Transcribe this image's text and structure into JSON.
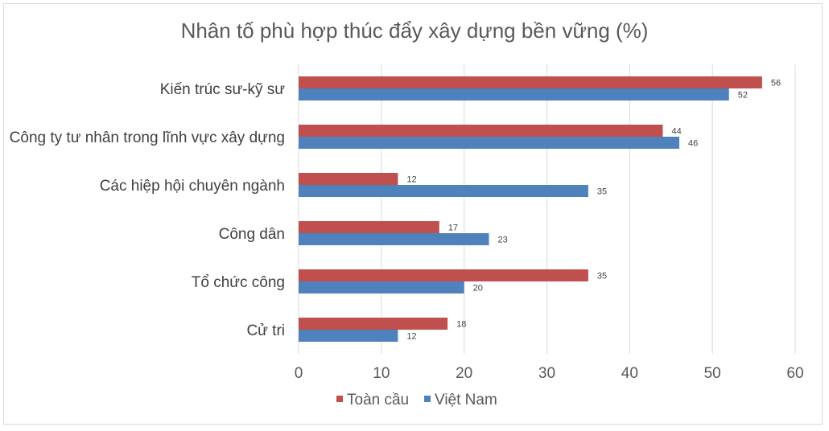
{
  "chart_data": {
    "type": "bar",
    "orientation": "horizontal",
    "title": "Nhân tố phù hợp thúc đẩy xây dựng bền vững (%)",
    "categories": [
      "Kiến trúc sư-kỹ sư",
      "Công ty tư nhân trong lĩnh vực xây dựng",
      "Các hiệp hội chuyên ngành",
      "Công dân",
      "Tổ chức công",
      "Cử tri"
    ],
    "series": [
      {
        "name": "Toàn cầu",
        "color": "#C0504D",
        "values": [
          56,
          44,
          12,
          17,
          35,
          18
        ]
      },
      {
        "name": "Việt Nam",
        "color": "#4F81BD",
        "values": [
          52,
          46,
          35,
          23,
          20,
          12
        ]
      }
    ],
    "xlim": [
      0,
      60
    ],
    "xticks": [
      0,
      10,
      20,
      30,
      40,
      50,
      60
    ],
    "grid": true,
    "legend": "bottom"
  }
}
